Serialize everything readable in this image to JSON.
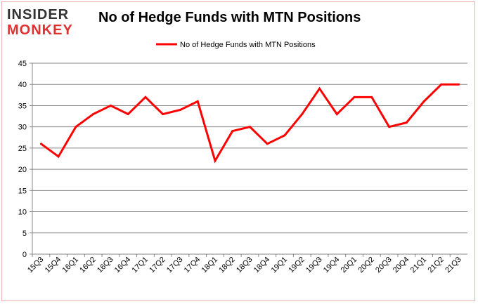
{
  "logo": {
    "line1": "INSIDER",
    "line2": "MONKEY"
  },
  "chart_data": {
    "type": "line",
    "title": "No of Hedge Funds with MTN Positions",
    "categories": [
      "15Q3",
      "15Q4",
      "16Q1",
      "16Q2",
      "16Q3",
      "16Q4",
      "17Q1",
      "17Q2",
      "17Q3",
      "17Q4",
      "18Q1",
      "18Q2",
      "18Q3",
      "18Q4",
      "19Q1",
      "19Q2",
      "19Q3",
      "19Q4",
      "20Q1",
      "20Q2",
      "20Q3",
      "20Q4",
      "21Q1",
      "21Q2",
      "21Q3"
    ],
    "series": [
      {
        "name": "No of Hedge Funds with MTN Positions",
        "color": "#ff0000",
        "values": [
          26,
          23,
          30,
          33,
          35,
          33,
          37,
          33,
          34,
          36,
          22,
          29,
          30,
          26,
          28,
          33,
          39,
          33,
          37,
          37,
          30,
          31,
          36,
          40,
          40
        ]
      }
    ],
    "ylim": [
      0,
      45
    ],
    "yticks": [
      0,
      5,
      10,
      15,
      20,
      25,
      30,
      35,
      40,
      45
    ],
    "grid": true,
    "legend": "top"
  }
}
